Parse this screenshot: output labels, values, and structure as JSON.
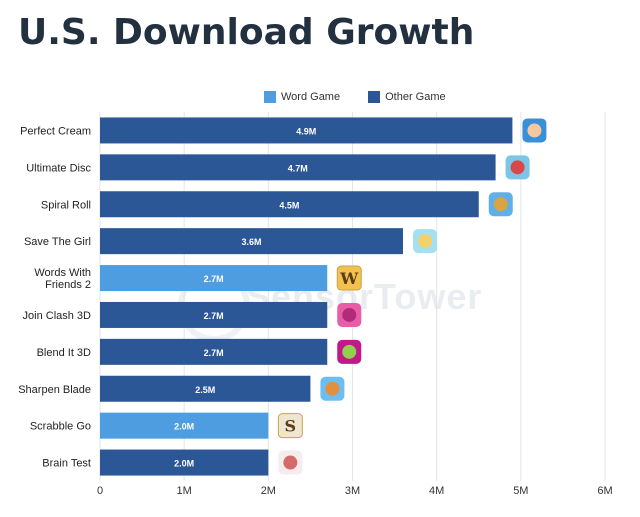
{
  "title": "U.S. Download Growth",
  "watermark": "SensorTower",
  "legend": [
    {
      "label": "Word Game",
      "color": "#4d9de0"
    },
    {
      "label": "Other Game",
      "color": "#2b5797"
    }
  ],
  "chart_data": {
    "type": "bar",
    "orientation": "horizontal",
    "title": "U.S. Download Growth",
    "categories": [
      "Perfect Cream",
      "Ultimate Disc",
      "Spiral Roll",
      "Save The Girl",
      "Words With Friends 2",
      "Join Clash 3D",
      "Blend It 3D",
      "Sharpen Blade",
      "Scrabble Go",
      "Brain Test"
    ],
    "category_lines": [
      [
        "Perfect Cream"
      ],
      [
        "Ultimate Disc"
      ],
      [
        "Spiral Roll"
      ],
      [
        "Save The Girl"
      ],
      [
        "Words With",
        "Friends 2"
      ],
      [
        "Join Clash 3D"
      ],
      [
        "Blend It 3D"
      ],
      [
        "Sharpen Blade"
      ],
      [
        "Scrabble Go"
      ],
      [
        "Brain Test"
      ]
    ],
    "values": [
      4.9,
      4.7,
      4.5,
      3.6,
      2.7,
      2.7,
      2.7,
      2.5,
      2.0,
      2.0
    ],
    "value_labels": [
      "4.9M",
      "4.7M",
      "4.5M",
      "3.6M",
      "2.7M",
      "2.7M",
      "2.7M",
      "2.5M",
      "2.0M",
      "2.0M"
    ],
    "genre": [
      "Other Game",
      "Other Game",
      "Other Game",
      "Other Game",
      "Word Game",
      "Other Game",
      "Other Game",
      "Other Game",
      "Word Game",
      "Other Game"
    ],
    "app_icons": [
      "cake-roll-icon",
      "disc-target-icon",
      "spiral-roll-icon",
      "girl-icon",
      "letter-w-tile-icon",
      "crowd-icon",
      "blender-fruit-icon",
      "blade-icon",
      "letter-s-tile-icon",
      "brain-icon"
    ],
    "xlim": [
      0,
      6
    ],
    "xticks": [
      0,
      1,
      2,
      3,
      4,
      5,
      6
    ],
    "xtick_labels": [
      "0",
      "1M",
      "2M",
      "3M",
      "4M",
      "5M",
      "6M"
    ],
    "grid": true,
    "legend_position": "top",
    "colors": {
      "Word Game": "#4d9de0",
      "Other Game": "#2b5797"
    }
  }
}
